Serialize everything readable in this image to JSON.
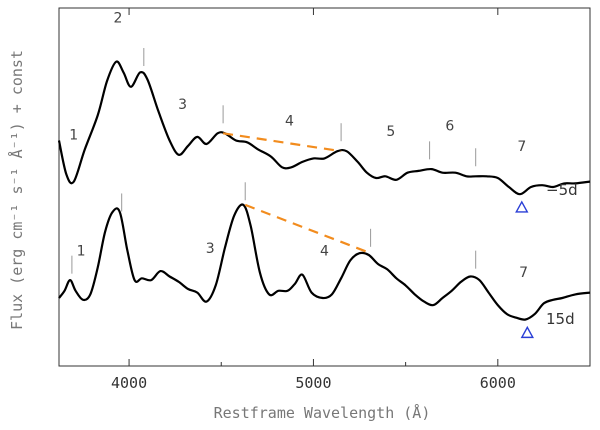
{
  "chart_data": {
    "type": "line",
    "xlabel": "Restframe Wavelength (Å)",
    "ylabel": "Flux (erg cm⁻¹ s⁻¹ Å⁻¹) + const",
    "xlim": [
      3620,
      6500
    ],
    "x_ticks": [
      4000,
      5000,
      6000
    ],
    "x_tick_labels": [
      "4000",
      "5000",
      "6000"
    ],
    "grid": false,
    "series": [
      {
        "name": "-5d",
        "label": "−5d",
        "points": [
          [
            3620,
            0.74
          ],
          [
            3660,
            0.93
          ],
          [
            3700,
            0.97
          ],
          [
            3760,
            0.79
          ],
          [
            3830,
            0.6
          ],
          [
            3880,
            0.41
          ],
          [
            3930,
            0.3
          ],
          [
            3970,
            0.36
          ],
          [
            4010,
            0.44
          ],
          [
            4060,
            0.36
          ],
          [
            4100,
            0.4
          ],
          [
            4160,
            0.58
          ],
          [
            4220,
            0.74
          ],
          [
            4270,
            0.82
          ],
          [
            4320,
            0.77
          ],
          [
            4370,
            0.72
          ],
          [
            4420,
            0.76
          ],
          [
            4480,
            0.7
          ],
          [
            4520,
            0.7
          ],
          [
            4580,
            0.74
          ],
          [
            4640,
            0.75
          ],
          [
            4700,
            0.79
          ],
          [
            4770,
            0.83
          ],
          [
            4830,
            0.89
          ],
          [
            4880,
            0.89
          ],
          [
            4940,
            0.86
          ],
          [
            5000,
            0.84
          ],
          [
            5060,
            0.84
          ],
          [
            5130,
            0.8
          ],
          [
            5180,
            0.8
          ],
          [
            5240,
            0.86
          ],
          [
            5290,
            0.92
          ],
          [
            5340,
            0.95
          ],
          [
            5390,
            0.94
          ],
          [
            5450,
            0.96
          ],
          [
            5510,
            0.92
          ],
          [
            5570,
            0.91
          ],
          [
            5640,
            0.9
          ],
          [
            5700,
            0.92
          ],
          [
            5770,
            0.92
          ],
          [
            5830,
            0.94
          ],
          [
            5880,
            0.94
          ],
          [
            5940,
            0.94
          ],
          [
            6000,
            0.95
          ],
          [
            6060,
            1.0
          ],
          [
            6120,
            1.04
          ],
          [
            6180,
            1.0
          ],
          [
            6240,
            0.99
          ],
          [
            6300,
            1.0
          ],
          [
            6360,
            0.98
          ],
          [
            6420,
            0.98
          ],
          [
            6500,
            0.97
          ]
        ]
      },
      {
        "name": "15d",
        "label": "15d",
        "points": [
          [
            3620,
            1.62
          ],
          [
            3650,
            1.58
          ],
          [
            3680,
            1.52
          ],
          [
            3710,
            1.58
          ],
          [
            3750,
            1.63
          ],
          [
            3790,
            1.6
          ],
          [
            3830,
            1.45
          ],
          [
            3870,
            1.25
          ],
          [
            3910,
            1.14
          ],
          [
            3950,
            1.14
          ],
          [
            3990,
            1.35
          ],
          [
            4030,
            1.52
          ],
          [
            4070,
            1.51
          ],
          [
            4120,
            1.52
          ],
          [
            4170,
            1.47
          ],
          [
            4220,
            1.5
          ],
          [
            4270,
            1.53
          ],
          [
            4320,
            1.57
          ],
          [
            4370,
            1.59
          ],
          [
            4420,
            1.64
          ],
          [
            4470,
            1.55
          ],
          [
            4520,
            1.34
          ],
          [
            4570,
            1.16
          ],
          [
            4620,
            1.1
          ],
          [
            4660,
            1.22
          ],
          [
            4710,
            1.48
          ],
          [
            4760,
            1.6
          ],
          [
            4810,
            1.58
          ],
          [
            4860,
            1.58
          ],
          [
            4900,
            1.54
          ],
          [
            4940,
            1.49
          ],
          [
            4990,
            1.59
          ],
          [
            5050,
            1.62
          ],
          [
            5100,
            1.6
          ],
          [
            5150,
            1.51
          ],
          [
            5200,
            1.41
          ],
          [
            5250,
            1.37
          ],
          [
            5300,
            1.38
          ],
          [
            5350,
            1.43
          ],
          [
            5400,
            1.46
          ],
          [
            5450,
            1.51
          ],
          [
            5500,
            1.55
          ],
          [
            5550,
            1.6
          ],
          [
            5600,
            1.64
          ],
          [
            5650,
            1.66
          ],
          [
            5700,
            1.62
          ],
          [
            5750,
            1.58
          ],
          [
            5800,
            1.53
          ],
          [
            5850,
            1.5
          ],
          [
            5900,
            1.52
          ],
          [
            5950,
            1.59
          ],
          [
            6000,
            1.66
          ],
          [
            6050,
            1.71
          ],
          [
            6100,
            1.73
          ],
          [
            6150,
            1.74
          ],
          [
            6200,
            1.71
          ],
          [
            6250,
            1.65
          ],
          [
            6300,
            1.63
          ],
          [
            6350,
            1.62
          ],
          [
            6420,
            1.6
          ],
          [
            6500,
            1.59
          ]
        ]
      }
    ],
    "feature_marks": [
      {
        "series": "-5d",
        "label": "1",
        "x": 3700
      },
      {
        "series": "-5d",
        "label": "2",
        "x": 3940
      },
      {
        "series": "-5d",
        "label": "",
        "x": 4080
      },
      {
        "series": "-5d",
        "label": "3",
        "x": 4290
      },
      {
        "series": "-5d",
        "label": "",
        "x": 4510
      },
      {
        "series": "-5d",
        "label": "4",
        "x": 4870
      },
      {
        "series": "-5d",
        "label": "",
        "x": 5150
      },
      {
        "series": "-5d",
        "label": "5",
        "x": 5420
      },
      {
        "series": "-5d",
        "label": "",
        "x": 5630
      },
      {
        "series": "-5d",
        "label": "6",
        "x": 5740
      },
      {
        "series": "-5d",
        "label": "",
        "x": 5880
      },
      {
        "series": "-5d",
        "label": "7",
        "x": 6130
      },
      {
        "series": "15d",
        "label": "",
        "x": 3690
      },
      {
        "series": "15d",
        "label": "1",
        "x": 3740
      },
      {
        "series": "15d",
        "label": "",
        "x": 3960
      },
      {
        "series": "15d",
        "label": "3",
        "x": 4440
      },
      {
        "series": "15d",
        "label": "",
        "x": 4630
      },
      {
        "series": "15d",
        "label": "4",
        "x": 5060
      },
      {
        "series": "15d",
        "label": "",
        "x": 5310
      },
      {
        "series": "15d",
        "label": "",
        "x": 5880
      },
      {
        "series": "15d",
        "label": "7",
        "x": 6140
      }
    ],
    "dashed_lines": [
      {
        "series": "-5d",
        "from": [
          4510,
          0.7
        ],
        "to": [
          5150,
          0.8
        ],
        "color": "#f28c1e"
      },
      {
        "series": "15d",
        "from": [
          4630,
          1.1
        ],
        "to": [
          5310,
          1.37
        ],
        "color": "#f28c1e"
      }
    ],
    "markers": [
      {
        "series": "-5d",
        "x": 6130,
        "shape": "triangle",
        "color": "#2a3fd6"
      },
      {
        "series": "15d",
        "x": 6160,
        "shape": "triangle",
        "color": "#2a3fd6"
      }
    ],
    "colors": {
      "spectrum": "#000000",
      "dash": "#f28c1e",
      "marker": "#2a3fd6",
      "axis": "#333333"
    }
  }
}
